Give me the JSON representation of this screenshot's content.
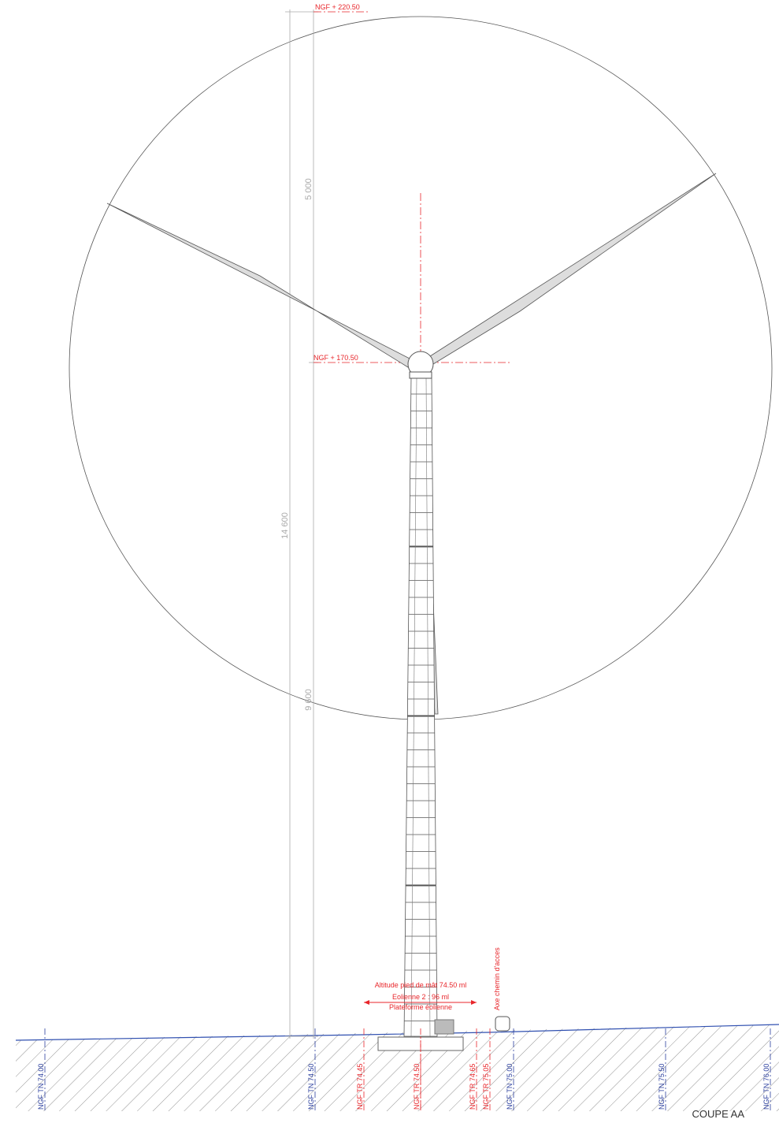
{
  "levels": {
    "top": "NGF + 220.50",
    "hub": "NGF + 170.50"
  },
  "dimensions": {
    "rotor": "5 000",
    "total": "14 600",
    "lower": "9 600"
  },
  "annotations": {
    "altitude": "Altitude pied de mât 74.50 ml",
    "turbine": "Eolienne 2 : 96 ml",
    "platform": "Plateforme éolienne",
    "access": "Axe chemin d'acces"
  },
  "ground_levels": [
    "NGF TN 74.00",
    "NGF TN 74.50",
    "NGF TR 74.45",
    "NGF TR 74.50",
    "NGF TR 74.65",
    "NGF TR 75.05",
    "NGF TN 75.00",
    "NGF TN 75.50",
    "NGF TN 76.00"
  ],
  "caption": "COUPE AA"
}
